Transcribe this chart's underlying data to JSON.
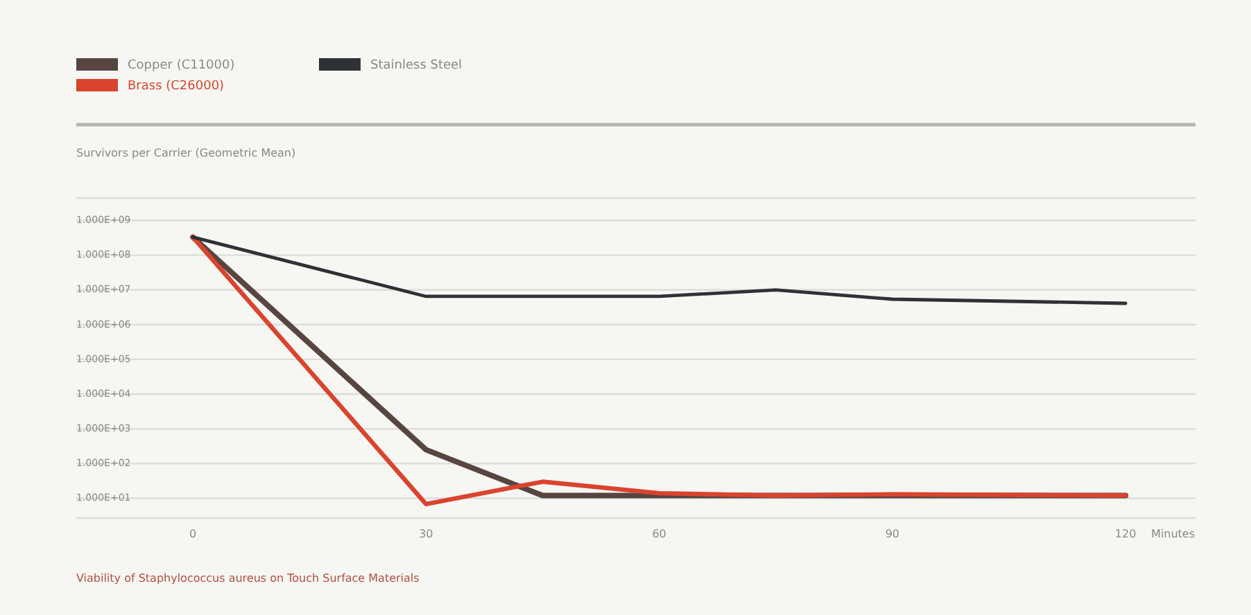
{
  "chart_data": {
    "type": "line",
    "title": "Viability of Staphylococcus aureus on Touch Surface Materials",
    "ylabel": "Survivors per Carrier (Geometric Mean)",
    "xlabel": "Minutes",
    "x": [
      0,
      30,
      45,
      60,
      75,
      90,
      120
    ],
    "series": [
      {
        "name": "Copper (C11000)",
        "color": "#574540",
        "values": [
          330000000,
          250,
          12,
          12,
          12,
          12,
          12
        ]
      },
      {
        "name": "Brass (C26000)",
        "color": "#d9442e",
        "values": [
          330000000,
          6.8,
          30,
          14,
          12,
          13,
          12
        ]
      },
      {
        "name": "Stainless Steel",
        "color": "#2e3136",
        "x": [
          0,
          30,
          60,
          75,
          90,
          120
        ],
        "values": [
          330000000,
          6500000,
          6500000,
          10000000,
          5400000,
          4100000
        ]
      }
    ],
    "log": true,
    "ylim": [
      2.7,
      4400000000
    ],
    "yticks": [
      {
        "value": 1000000000,
        "label": "1.000E+09"
      },
      {
        "value": 100000000,
        "label": "1.000E+08"
      },
      {
        "value": 10000000,
        "label": "1.000E+07"
      },
      {
        "value": 1000000,
        "label": "1.000E+06"
      },
      {
        "value": 100000,
        "label": "1.000E+05"
      },
      {
        "value": 10000,
        "label": "1.000E+04"
      },
      {
        "value": 1000,
        "label": "1.000E+03"
      },
      {
        "value": 100,
        "label": "1.000E+02"
      },
      {
        "value": 10,
        "label": "1.000E+01"
      }
    ],
    "xlim": [
      -15,
      129
    ],
    "xticks": [
      0,
      30,
      60,
      90,
      120
    ],
    "grid": "y",
    "legend": "top left",
    "marker": "none",
    "line_style": "solid"
  }
}
